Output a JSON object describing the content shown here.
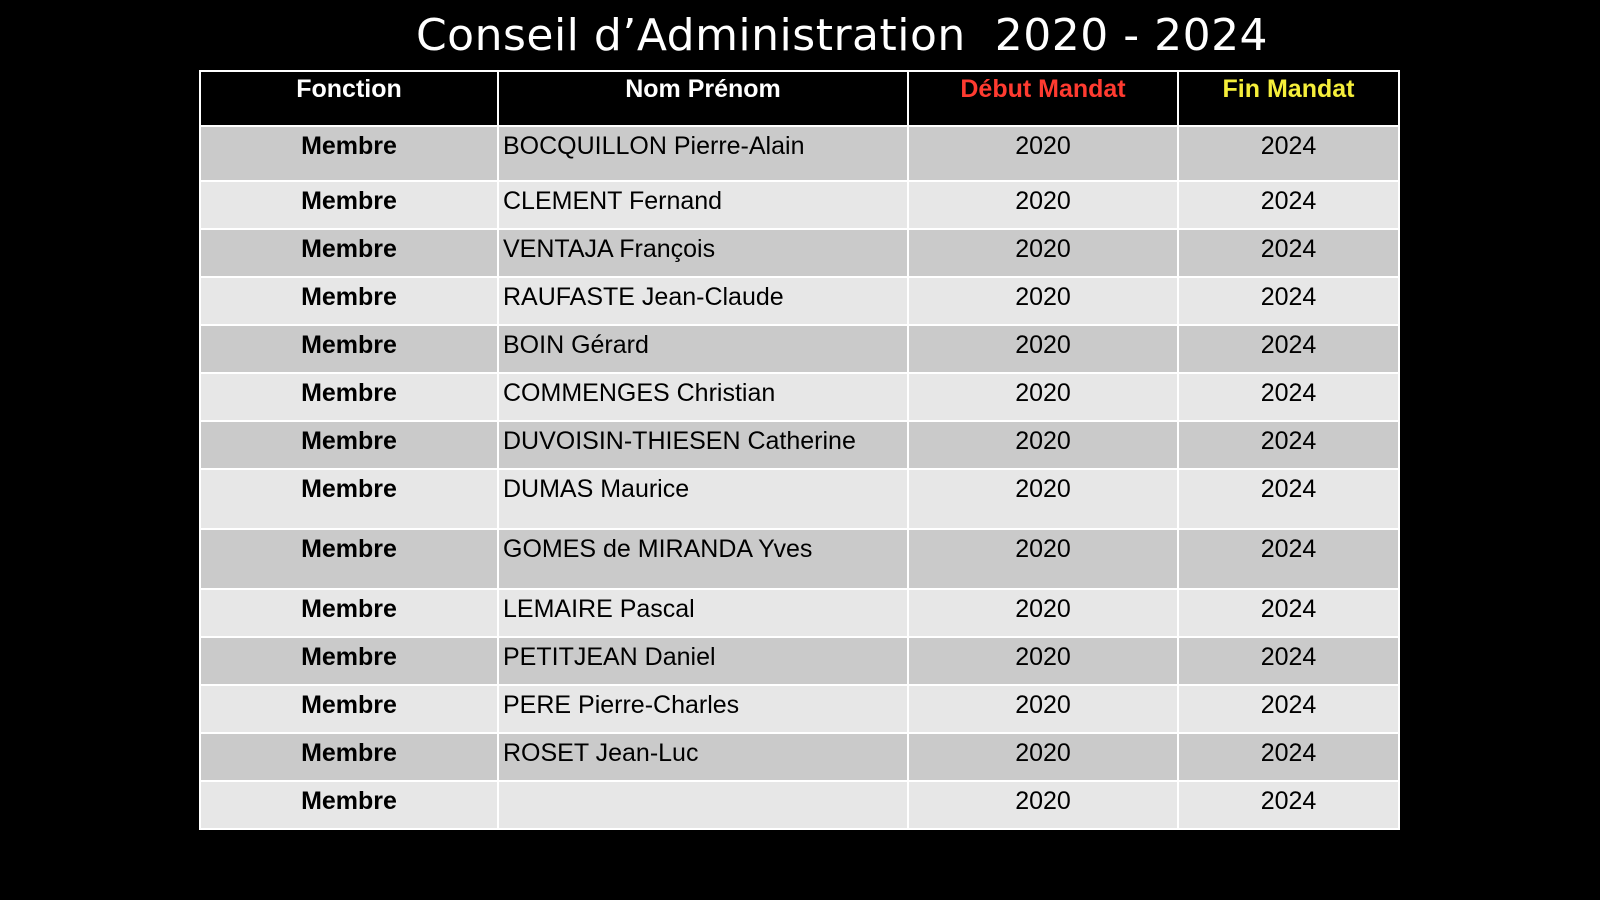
{
  "title": "Conseil d’Administration  2020 - 2024",
  "colors": {
    "background": "#000000",
    "header_text": "#ffffff",
    "debut_header": "#ff3b30",
    "fin_header": "#f5ee3a",
    "row_dark": "#cacaca",
    "row_light": "#e7e7e7"
  },
  "table": {
    "headers": {
      "fonction": "Fonction",
      "nom": "Nom Prénom",
      "debut": "Début Mandat",
      "fin": "Fin Mandat"
    },
    "rows": [
      {
        "fonction": "Membre",
        "nom": "BOCQUILLON Pierre-Alain",
        "debut": "2020",
        "fin": "2024"
      },
      {
        "fonction": "Membre",
        "nom": "CLEMENT Fernand",
        "debut": "2020",
        "fin": "2024"
      },
      {
        "fonction": "Membre",
        "nom": "VENTAJA François",
        "debut": "2020",
        "fin": "2024"
      },
      {
        "fonction": "Membre",
        "nom": "RAUFASTE Jean-Claude",
        "debut": "2020",
        "fin": "2024"
      },
      {
        "fonction": "Membre",
        "nom": "BOIN Gérard",
        "debut": "2020",
        "fin": "2024"
      },
      {
        "fonction": "Membre",
        "nom": "COMMENGES Christian",
        "debut": "2020",
        "fin": "2024"
      },
      {
        "fonction": "Membre",
        "nom": "DUVOISIN-THIESEN Catherine",
        "debut": "2020",
        "fin": "2024"
      },
      {
        "fonction": "Membre",
        "nom": "DUMAS Maurice",
        "debut": "2020",
        "fin": "2024"
      },
      {
        "fonction": "Membre",
        "nom": "GOMES de MIRANDA Yves",
        "debut": "2020",
        "fin": "2024"
      },
      {
        "fonction": "Membre",
        "nom": "LEMAIRE Pascal",
        "debut": "2020",
        "fin": "2024"
      },
      {
        "fonction": "Membre",
        "nom": "PETITJEAN Daniel",
        "debut": "2020",
        "fin": "2024"
      },
      {
        "fonction": "Membre",
        "nom": "PERE Pierre-Charles",
        "debut": "2020",
        "fin": "2024"
      },
      {
        "fonction": "Membre",
        "nom": "ROSET Jean-Luc",
        "debut": "2020",
        "fin": "2024"
      },
      {
        "fonction": "Membre",
        "nom": "",
        "debut": "2020",
        "fin": "2024"
      }
    ]
  }
}
